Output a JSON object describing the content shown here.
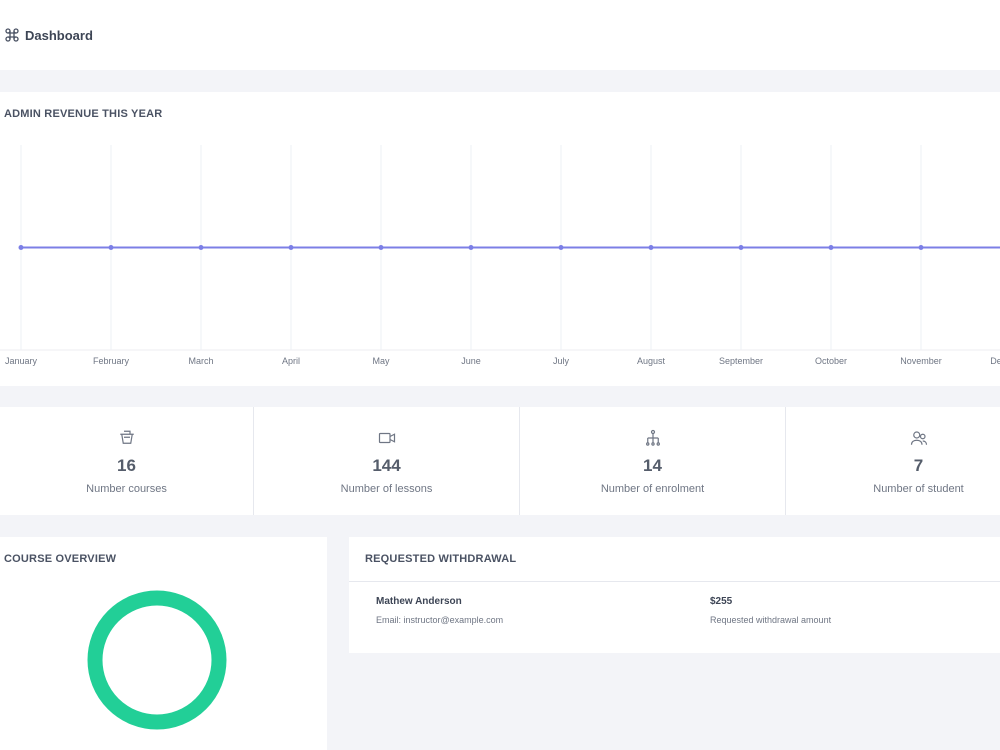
{
  "header": {
    "title": "Dashboard"
  },
  "chart_data": {
    "type": "line",
    "title": "ADMIN REVENUE THIS YEAR",
    "categories": [
      "January",
      "February",
      "March",
      "April",
      "May",
      "June",
      "July",
      "August",
      "September",
      "October",
      "November",
      "December"
    ],
    "values": [
      0,
      0,
      0,
      0,
      0,
      0,
      0,
      0,
      0,
      0,
      0,
      0
    ],
    "color": "#7c7fe6",
    "ylim": [
      -1,
      1
    ],
    "xgrid": true
  },
  "stats": [
    {
      "value": 16,
      "label": "Number courses"
    },
    {
      "value": 144,
      "label": "Number of lessons"
    },
    {
      "value": 14,
      "label": "Number of enrolment"
    },
    {
      "value": 7,
      "label": "Number of student"
    }
  ],
  "course_overview": {
    "title": "COURSE OVERVIEW"
  },
  "withdrawal": {
    "title": "REQUESTED WITHDRAWAL",
    "rows": [
      {
        "name": "Mathew Anderson",
        "email": "Email: instructor@example.com",
        "amount": "$255",
        "amount_label": "Requested withdrawal amount"
      }
    ]
  }
}
